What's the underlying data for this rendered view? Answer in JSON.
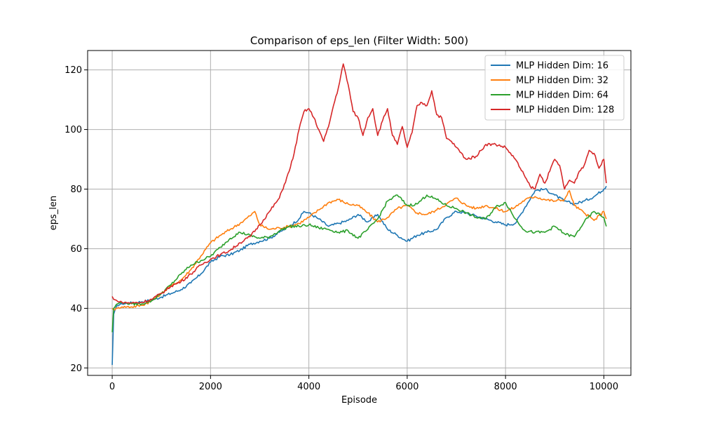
{
  "chart_data": {
    "type": "line",
    "title": "Comparison of eps_len (Filter Width: 500)",
    "xlabel": "Episode",
    "ylabel": "eps_len",
    "xlim": [
      -500,
      10550
    ],
    "ylim": [
      17.5,
      126.5
    ],
    "xticks": [
      0,
      2000,
      4000,
      6000,
      8000,
      10000
    ],
    "yticks": [
      20,
      40,
      60,
      80,
      100,
      120
    ],
    "grid": true,
    "legend_position": "top-right",
    "series": [
      {
        "name": "MLP Hidden Dim: 16",
        "color": "#1f77b4",
        "x": [
          0,
          30,
          100,
          200,
          400,
          600,
          800,
          1000,
          1200,
          1400,
          1600,
          1800,
          2000,
          2200,
          2400,
          2600,
          2800,
          3000,
          3200,
          3400,
          3600,
          3800,
          3900,
          4000,
          4200,
          4400,
          4600,
          4800,
          5000,
          5200,
          5400,
          5600,
          5800,
          6000,
          6200,
          6400,
          6600,
          6800,
          7000,
          7200,
          7400,
          7600,
          7800,
          8000,
          8200,
          8400,
          8600,
          8800,
          9000,
          9200,
          9400,
          9600,
          9800,
          10000,
          10050
        ],
        "y": [
          21,
          38,
          41,
          41.5,
          41.8,
          42.2,
          42.8,
          43.8,
          45,
          46.3,
          48.5,
          51.5,
          55.5,
          57.5,
          58,
          59.5,
          61.5,
          62.5,
          63.5,
          65.5,
          67.5,
          70,
          72.5,
          72,
          70,
          67.5,
          68.5,
          69.5,
          71.5,
          69,
          71.5,
          66.5,
          64.5,
          62.5,
          64.5,
          65.5,
          66.5,
          70.5,
          72.5,
          72,
          71,
          70,
          69,
          68,
          68.5,
          74,
          79.5,
          80,
          78,
          76,
          75,
          76,
          77.5,
          80,
          81
        ]
      },
      {
        "name": "MLP Hidden Dim: 32",
        "color": "#ff7f0e",
        "x": [
          0,
          30,
          100,
          200,
          400,
          600,
          800,
          1000,
          1200,
          1400,
          1600,
          1800,
          2000,
          2200,
          2400,
          2600,
          2800,
          2900,
          3000,
          3200,
          3400,
          3600,
          3800,
          4000,
          4200,
          4400,
          4600,
          4800,
          5000,
          5200,
          5400,
          5600,
          5800,
          6000,
          6200,
          6400,
          6600,
          6800,
          7000,
          7200,
          7400,
          7600,
          7800,
          8000,
          8200,
          8400,
          8600,
          8800,
          9000,
          9200,
          9300,
          9400,
          9600,
          9800,
          10000,
          10050
        ],
        "y": [
          40,
          39.5,
          40,
          40.5,
          40.5,
          41,
          42.5,
          45,
          47.5,
          49.5,
          53,
          57.5,
          62,
          64.5,
          66.5,
          68.5,
          71,
          72.5,
          68,
          66.5,
          67,
          67.5,
          68.5,
          70.5,
          73,
          75.5,
          76.5,
          75,
          74.5,
          72,
          69,
          70.5,
          73.5,
          74.5,
          72,
          71.5,
          73,
          75,
          77,
          74.5,
          73.5,
          74.5,
          73.5,
          72.5,
          74,
          76.5,
          77.5,
          76.5,
          76,
          76.5,
          79.5,
          74.5,
          72,
          69.5,
          72.5,
          70
        ]
      },
      {
        "name": "MLP Hidden Dim: 64",
        "color": "#2ca02c",
        "x": [
          0,
          30,
          100,
          200,
          400,
          600,
          800,
          1000,
          1200,
          1400,
          1600,
          1800,
          2000,
          2200,
          2400,
          2600,
          2800,
          3000,
          3200,
          3400,
          3600,
          3800,
          4000,
          4200,
          4400,
          4600,
          4800,
          5000,
          5200,
          5400,
          5600,
          5800,
          6000,
          6200,
          6400,
          6600,
          6800,
          7000,
          7200,
          7400,
          7600,
          7800,
          8000,
          8200,
          8400,
          8600,
          8800,
          9000,
          9200,
          9400,
          9600,
          9800,
          10000,
          10050
        ],
        "y": [
          32,
          40,
          41.5,
          42,
          41.5,
          41.5,
          42.5,
          45,
          48,
          51.5,
          54.5,
          56,
          57.5,
          60.5,
          63.5,
          65.5,
          64.5,
          63.5,
          64,
          66,
          67.5,
          67.5,
          68,
          67,
          66.5,
          65.5,
          66,
          63.5,
          66.5,
          70,
          76,
          78,
          74.5,
          75,
          78,
          76.5,
          74.5,
          73.5,
          72,
          70.5,
          70,
          74,
          75.5,
          70,
          66,
          65.5,
          65.5,
          67.5,
          65,
          64,
          69,
          72.5,
          70.5,
          67.5
        ]
      },
      {
        "name": "MLP Hidden Dim: 128",
        "color": "#d62728",
        "x": [
          0,
          30,
          100,
          200,
          400,
          600,
          800,
          1000,
          1200,
          1400,
          1600,
          1800,
          2000,
          2200,
          2400,
          2600,
          2800,
          3000,
          3200,
          3400,
          3600,
          3700,
          3800,
          3900,
          4000,
          4100,
          4200,
          4300,
          4400,
          4500,
          4600,
          4700,
          4800,
          4900,
          5000,
          5100,
          5200,
          5300,
          5400,
          5500,
          5600,
          5700,
          5800,
          5900,
          6000,
          6100,
          6200,
          6300,
          6400,
          6500,
          6600,
          6700,
          6800,
          6900,
          7000,
          7200,
          7400,
          7600,
          7800,
          8000,
          8200,
          8300,
          8400,
          8500,
          8600,
          8700,
          8800,
          8900,
          9000,
          9100,
          9200,
          9300,
          9400,
          9500,
          9600,
          9700,
          9800,
          9900,
          10000,
          10050
        ],
        "y": [
          44,
          43,
          42.5,
          42,
          41.8,
          42,
          43,
          45,
          47.5,
          49,
          51.5,
          54.5,
          56.5,
          58,
          59.5,
          62,
          64,
          68,
          72.5,
          77,
          86,
          92,
          100,
          106,
          107,
          104,
          100,
          96,
          101,
          108,
          114,
          122,
          115,
          106,
          104,
          98,
          104,
          107,
          98,
          103,
          107,
          98,
          95,
          101,
          94,
          99,
          108,
          109,
          108,
          113,
          105,
          104,
          97,
          96,
          94,
          90,
          91,
          95,
          95,
          94,
          90,
          87,
          84,
          81,
          80,
          85,
          82,
          86,
          90,
          88,
          80,
          83,
          82,
          86,
          88,
          93,
          92,
          87,
          90,
          82
        ]
      }
    ]
  }
}
